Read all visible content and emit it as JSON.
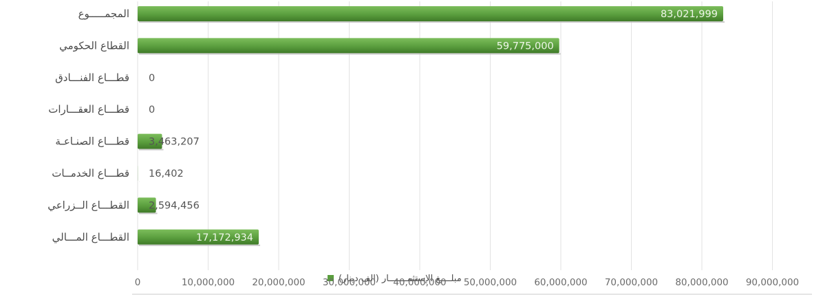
{
  "chart_data": {
    "type": "bar",
    "orientation": "horizontal",
    "categories": [
      "المجمـــــوع",
      "القطاع الحكومي",
      "قطـــاع الفنـــادق",
      "قطـــاع العقـــارات",
      "قطـــاع الصنـاعـة",
      "قطـــاع الخدمــات",
      "القطـــاع الــزراعي",
      "القطـــاع المـــالي"
    ],
    "series": [
      {
        "name": "مبلــــغ الإستثمـــــــار (الف دينار)",
        "values": [
          83021999,
          59775000,
          0,
          0,
          3463207,
          16402,
          2594456,
          17172934
        ],
        "labels": [
          "83,021,999",
          "59,775,000",
          "0",
          "0",
          "3,463,207",
          "16,402",
          "2,594,456",
          "17,172,934"
        ]
      }
    ],
    "xlim": [
      0,
      90000000
    ],
    "x_ticks": [
      0,
      10000000,
      20000000,
      30000000,
      40000000,
      50000000,
      60000000,
      70000000,
      80000000,
      90000000
    ],
    "x_tick_labels": [
      "0",
      "10,000,000",
      "20,000,000",
      "30,000,000",
      "40,000,000",
      "50,000,000",
      "60,000,000",
      "70,000,000",
      "80,000,000",
      "90,000,000"
    ],
    "grid": true,
    "legend_position": "bottom-center",
    "colors": {
      "bar": "#5a9e3e",
      "bar_dark": "#3f7a28",
      "grid": "#e2e2e2",
      "axis": "#c8c8c8"
    }
  }
}
